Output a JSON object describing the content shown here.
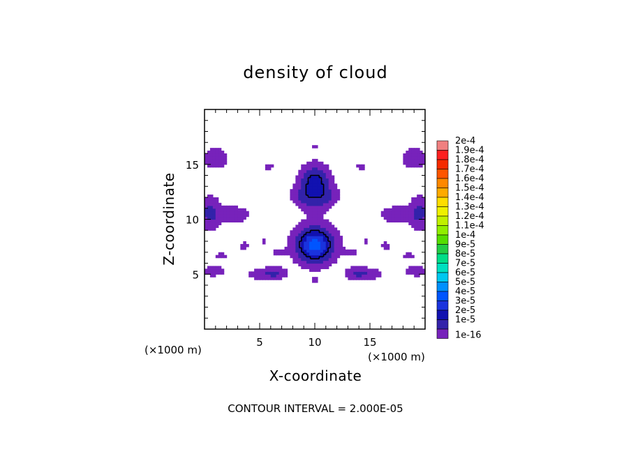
{
  "chart_data": {
    "type": "heatmap",
    "title": "density of cloud",
    "xlabel": "X-coordinate",
    "ylabel": "Z-coordinate",
    "x_unit": "(×1000 m)",
    "y_unit": "(×1000 m)",
    "xlim": [
      0,
      20
    ],
    "ylim": [
      0,
      20
    ],
    "x_ticks": [
      5,
      10,
      15
    ],
    "y_ticks": [
      5,
      10,
      15
    ],
    "contour_interval_text": "CONTOUR INTERVAL = 2.000E-05",
    "contour_levels": [
      2e-05
    ],
    "colorbar": {
      "labels": [
        "2e-4",
        "1.9e-4",
        "1.8e-4",
        "1.7e-4",
        "1.6e-4",
        "1.5e-4",
        "1.4e-4",
        "1.3e-4",
        "1.2e-4",
        "1.1e-4",
        "1e-4",
        "9e-5",
        "8e-5",
        "7e-5",
        "6e-5",
        "5e-5",
        "4e-5",
        "3e-5",
        "2e-5",
        "1e-5",
        "1e-16"
      ],
      "colors": [
        "#f08080",
        "#ff2020",
        "#f52a00",
        "#ff5500",
        "#ff8800",
        "#ffaa00",
        "#ffdd00",
        "#eef000",
        "#c0f000",
        "#90ee00",
        "#55dd00",
        "#22cc44",
        "#00dd88",
        "#00e0c0",
        "#00c8f0",
        "#0090ff",
        "#0055ff",
        "#1a33dd",
        "#1111b0",
        "#3322aa",
        "#7722bb"
      ]
    },
    "blobs": [
      {
        "x": 10,
        "z": 7.7,
        "sx": 1.05,
        "sz": 1.0,
        "peak": 4.5e-05
      },
      {
        "x": 10,
        "z": 13.5,
        "sx": 0.8,
        "sz": 0.9,
        "peak": 2.4e-05
      },
      {
        "x": 9.4,
        "z": 12.0,
        "sx": 0.6,
        "sz": 0.8,
        "peak": 1.2e-05
      },
      {
        "x": 10.6,
        "z": 12.0,
        "sx": 0.6,
        "sz": 0.8,
        "peak": 1.2e-05
      },
      {
        "x": 8.4,
        "z": 12.3,
        "sx": 0.5,
        "sz": 0.5,
        "peak": 6e-06
      },
      {
        "x": 11.6,
        "z": 12.3,
        "sx": 0.5,
        "sz": 0.5,
        "peak": 6e-06
      },
      {
        "x": 6.2,
        "z": 5.1,
        "sx": 0.75,
        "sz": 0.35,
        "peak": 1.3e-05
      },
      {
        "x": 14.0,
        "z": 5.1,
        "sx": 0.75,
        "sz": 0.35,
        "peak": 1.3e-05
      },
      {
        "x": 4.6,
        "z": 5.0,
        "sx": 0.5,
        "sz": 0.3,
        "peak": 5e-06
      },
      {
        "x": 15.4,
        "z": 5.0,
        "sx": 0.5,
        "sz": 0.3,
        "peak": 5e-06
      },
      {
        "x": 2.6,
        "z": 10.4,
        "sx": 0.9,
        "sz": 0.5,
        "peak": 8e-06
      },
      {
        "x": 17.4,
        "z": 10.4,
        "sx": 0.9,
        "sz": 0.5,
        "peak": 8e-06
      },
      {
        "x": 0.5,
        "z": 10.6,
        "sx": 0.6,
        "sz": 0.9,
        "peak": 1.3e-05
      },
      {
        "x": 19.5,
        "z": 10.6,
        "sx": 0.6,
        "sz": 0.9,
        "peak": 1.3e-05
      },
      {
        "x": 1.0,
        "z": 15.6,
        "sx": 0.9,
        "sz": 0.8,
        "peak": 5e-06
      },
      {
        "x": 19.0,
        "z": 15.6,
        "sx": 0.9,
        "sz": 0.8,
        "peak": 5e-06
      },
      {
        "x": 0.8,
        "z": 5.3,
        "sx": 0.7,
        "sz": 0.35,
        "peak": 6e-06
      },
      {
        "x": 19.2,
        "z": 5.3,
        "sx": 0.7,
        "sz": 0.35,
        "peak": 6e-06
      },
      {
        "x": 1.5,
        "z": 6.7,
        "sx": 0.6,
        "sz": 0.25,
        "peak": 4e-06
      },
      {
        "x": 18.5,
        "z": 6.7,
        "sx": 0.6,
        "sz": 0.25,
        "peak": 4e-06
      },
      {
        "x": 3.6,
        "z": 7.6,
        "sx": 0.5,
        "sz": 0.3,
        "peak": 4e-06
      },
      {
        "x": 16.4,
        "z": 7.6,
        "sx": 0.5,
        "sz": 0.3,
        "peak": 4e-06
      },
      {
        "x": 5.8,
        "z": 14.8,
        "sx": 0.4,
        "sz": 0.25,
        "peak": 4e-06
      },
      {
        "x": 14.2,
        "z": 14.8,
        "sx": 0.4,
        "sz": 0.25,
        "peak": 4e-06
      },
      {
        "x": 10,
        "z": 16.6,
        "sx": 0.3,
        "sz": 0.25,
        "peak": 4e-06
      },
      {
        "x": 10,
        "z": 4.4,
        "sx": 0.3,
        "sz": 0.25,
        "peak": 4e-06
      },
      {
        "x": 6.8,
        "z": 7.0,
        "sx": 0.5,
        "sz": 0.3,
        "peak": 4e-06
      },
      {
        "x": 13.2,
        "z": 7.0,
        "sx": 0.5,
        "sz": 0.3,
        "peak": 4e-06
      },
      {
        "x": 5.4,
        "z": 8.0,
        "sx": 0.3,
        "sz": 0.25,
        "peak": 3e-06
      },
      {
        "x": 14.6,
        "z": 8.0,
        "sx": 0.3,
        "sz": 0.25,
        "peak": 3e-06
      }
    ]
  }
}
